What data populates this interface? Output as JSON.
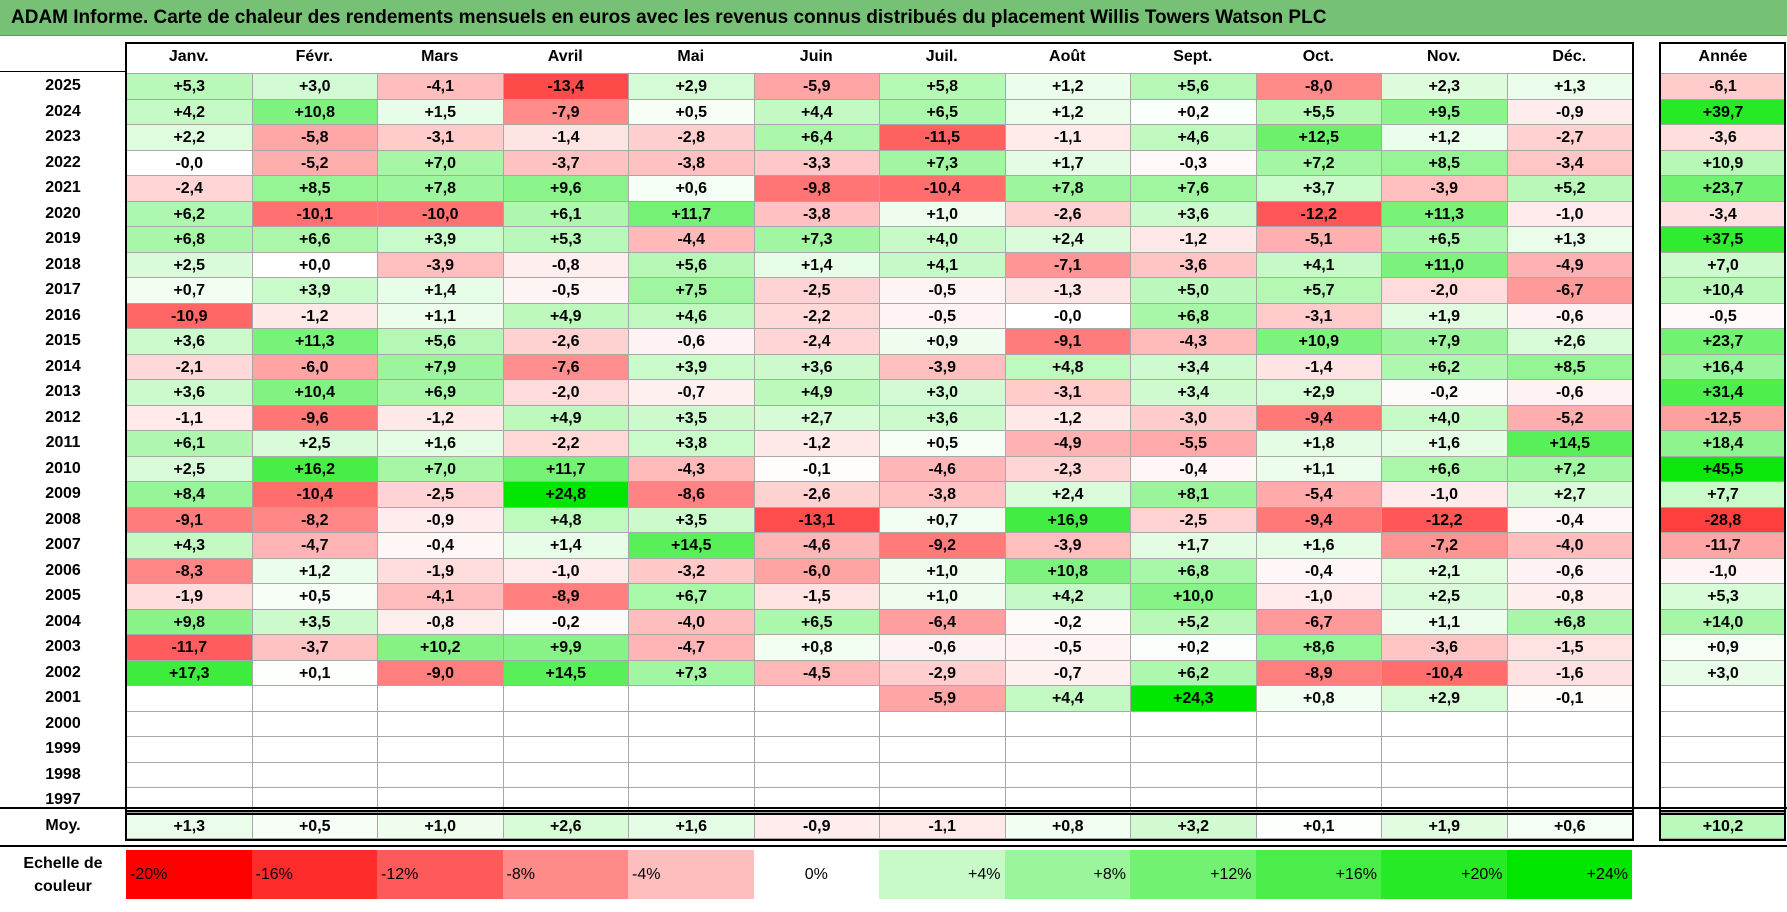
{
  "title": "ADAM Informe. Carte de chaleur des rendements mensuels en euros avec les revenus connus distribués du placement Willis Towers Watson PLC",
  "months": [
    "Janv.",
    "Févr.",
    "Mars",
    "Avril",
    "Mai",
    "Juin",
    "Juil.",
    "Août",
    "Sept.",
    "Oct.",
    "Nov.",
    "Déc."
  ],
  "year_header": "Année",
  "avg_label": "Moy.",
  "scale_label": "Echelle de couleur",
  "scale": [
    {
      "label": "-20%",
      "value": -20
    },
    {
      "label": "-16%",
      "value": -16
    },
    {
      "label": "-12%",
      "value": -12
    },
    {
      "label": "-8%",
      "value": -8
    },
    {
      "label": "-4%",
      "value": -4
    },
    {
      "label": "0%",
      "value": 0
    },
    {
      "label": "+4%",
      "value": 4
    },
    {
      "label": "+8%",
      "value": 8
    },
    {
      "label": "+12%",
      "value": 12
    },
    {
      "label": "+16%",
      "value": 16
    },
    {
      "label": "+20%",
      "value": 20
    },
    {
      "label": "+24%",
      "value": 24
    }
  ],
  "colors": {
    "title_bg": "#77c177",
    "neg_max": "#ff0000",
    "pos_max": "#00e600",
    "neutral": "#ffffff"
  },
  "chart_data": {
    "type": "heatmap",
    "title": "ADAM Informe. Carte de chaleur des rendements mensuels en euros avec les revenus connus distribués du placement Willis Towers Watson PLC",
    "x": [
      "Janv.",
      "Févr.",
      "Mars",
      "Avril",
      "Mai",
      "Juin",
      "Juil.",
      "Août",
      "Sept.",
      "Oct.",
      "Nov.",
      "Déc."
    ],
    "rows": [
      {
        "year": "2025",
        "values": [
          "+5,3",
          "+3,0",
          "-4,1",
          "-13,4",
          "+2,9",
          "-5,9",
          "+5,8",
          "+1,2",
          "+5,6",
          "-8,0",
          "+2,3",
          "+1,3"
        ],
        "annual": "-6,1"
      },
      {
        "year": "2024",
        "values": [
          "+4,2",
          "+10,8",
          "+1,5",
          "-7,9",
          "+0,5",
          "+4,4",
          "+6,5",
          "+1,2",
          "+0,2",
          "+5,5",
          "+9,5",
          "-0,9"
        ],
        "annual": "+39,7"
      },
      {
        "year": "2023",
        "values": [
          "+2,2",
          "-5,8",
          "-3,1",
          "-1,4",
          "-2,8",
          "+6,4",
          "-11,5",
          "-1,1",
          "+4,6",
          "+12,5",
          "+1,2",
          "-2,7"
        ],
        "annual": "-3,6"
      },
      {
        "year": "2022",
        "values": [
          "-0,0",
          "-5,2",
          "+7,0",
          "-3,7",
          "-3,8",
          "-3,3",
          "+7,3",
          "+1,7",
          "-0,3",
          "+7,2",
          "+8,5",
          "-3,4"
        ],
        "annual": "+10,9"
      },
      {
        "year": "2021",
        "values": [
          "-2,4",
          "+8,5",
          "+7,8",
          "+9,6",
          "+0,6",
          "-9,8",
          "-10,4",
          "+7,8",
          "+7,6",
          "+3,7",
          "-3,9",
          "+5,2"
        ],
        "annual": "+23,7"
      },
      {
        "year": "2020",
        "values": [
          "+6,2",
          "-10,1",
          "-10,0",
          "+6,1",
          "+11,7",
          "-3,8",
          "+1,0",
          "-2,6",
          "+3,6",
          "-12,2",
          "+11,3",
          "-1,0"
        ],
        "annual": "-3,4"
      },
      {
        "year": "2019",
        "values": [
          "+6,8",
          "+6,6",
          "+3,9",
          "+5,3",
          "-4,4",
          "+7,3",
          "+4,0",
          "+2,4",
          "-1,2",
          "-5,1",
          "+6,5",
          "+1,3"
        ],
        "annual": "+37,5"
      },
      {
        "year": "2018",
        "values": [
          "+2,5",
          "+0,0",
          "-3,9",
          "-0,8",
          "+5,6",
          "+1,4",
          "+4,1",
          "-7,1",
          "-3,6",
          "+4,1",
          "+11,0",
          "-4,9"
        ],
        "annual": "+7,0"
      },
      {
        "year": "2017",
        "values": [
          "+0,7",
          "+3,9",
          "+1,4",
          "-0,5",
          "+7,5",
          "-2,5",
          "-0,5",
          "-1,3",
          "+5,0",
          "+5,7",
          "-2,0",
          "-6,7"
        ],
        "annual": "+10,4"
      },
      {
        "year": "2016",
        "values": [
          "-10,9",
          "-1,2",
          "+1,1",
          "+4,9",
          "+4,6",
          "-2,2",
          "-0,5",
          "-0,0",
          "+6,8",
          "-3,1",
          "+1,9",
          "-0,6"
        ],
        "annual": "-0,5"
      },
      {
        "year": "2015",
        "values": [
          "+3,6",
          "+11,3",
          "+5,6",
          "-2,6",
          "-0,6",
          "-2,4",
          "+0,9",
          "-9,1",
          "-4,3",
          "+10,9",
          "+7,9",
          "+2,6"
        ],
        "annual": "+23,7"
      },
      {
        "year": "2014",
        "values": [
          "-2,1",
          "-6,0",
          "+7,9",
          "-7,6",
          "+3,9",
          "+3,6",
          "-3,9",
          "+4,8",
          "+3,4",
          "-1,4",
          "+6,2",
          "+8,5"
        ],
        "annual": "+16,4"
      },
      {
        "year": "2013",
        "values": [
          "+3,6",
          "+10,4",
          "+6,9",
          "-2,0",
          "-0,7",
          "+4,9",
          "+3,0",
          "-3,1",
          "+3,4",
          "+2,9",
          "-0,2",
          "-0,6"
        ],
        "annual": "+31,4"
      },
      {
        "year": "2012",
        "values": [
          "-1,1",
          "-9,6",
          "-1,2",
          "+4,9",
          "+3,5",
          "+2,7",
          "+3,6",
          "-1,2",
          "-3,0",
          "-9,4",
          "+4,0",
          "-5,2"
        ],
        "annual": "-12,5"
      },
      {
        "year": "2011",
        "values": [
          "+6,1",
          "+2,5",
          "+1,6",
          "-2,2",
          "+3,8",
          "-1,2",
          "+0,5",
          "-4,9",
          "-5,5",
          "+1,8",
          "+1,6",
          "+14,5"
        ],
        "annual": "+18,4"
      },
      {
        "year": "2010",
        "values": [
          "+2,5",
          "+16,2",
          "+7,0",
          "+11,7",
          "-4,3",
          "-0,1",
          "-4,6",
          "-2,3",
          "-0,4",
          "+1,1",
          "+6,6",
          "+7,2"
        ],
        "annual": "+45,5"
      },
      {
        "year": "2009",
        "values": [
          "+8,4",
          "-10,4",
          "-2,5",
          "+24,8",
          "-8,6",
          "-2,6",
          "-3,8",
          "+2,4",
          "+8,1",
          "-5,4",
          "-1,0",
          "+2,7"
        ],
        "annual": "+7,7"
      },
      {
        "year": "2008",
        "values": [
          "-9,1",
          "-8,2",
          "-0,9",
          "+4,8",
          "+3,5",
          "-13,1",
          "+0,7",
          "+16,9",
          "-2,5",
          "-9,4",
          "-12,2",
          "-0,4"
        ],
        "annual": "-28,8"
      },
      {
        "year": "2007",
        "values": [
          "+4,3",
          "-4,7",
          "-0,4",
          "+1,4",
          "+14,5",
          "-4,6",
          "-9,2",
          "-3,9",
          "+1,7",
          "+1,6",
          "-7,2",
          "-4,0"
        ],
        "annual": "-11,7"
      },
      {
        "year": "2006",
        "values": [
          "-8,3",
          "+1,2",
          "-1,9",
          "-1,0",
          "-3,2",
          "-6,0",
          "+1,0",
          "+10,8",
          "+6,8",
          "-0,4",
          "+2,1",
          "-0,6"
        ],
        "annual": "-1,0"
      },
      {
        "year": "2005",
        "values": [
          "-1,9",
          "+0,5",
          "-4,1",
          "-8,9",
          "+6,7",
          "-1,5",
          "+1,0",
          "+4,2",
          "+10,0",
          "-1,0",
          "+2,5",
          "-0,8"
        ],
        "annual": "+5,3"
      },
      {
        "year": "2004",
        "values": [
          "+9,8",
          "+3,5",
          "-0,8",
          "-0,2",
          "-4,0",
          "+6,5",
          "-6,4",
          "-0,2",
          "+5,2",
          "-6,7",
          "+1,1",
          "+6,8"
        ],
        "annual": "+14,0"
      },
      {
        "year": "2003",
        "values": [
          "-11,7",
          "-3,7",
          "+10,2",
          "+9,9",
          "-4,7",
          "+0,8",
          "-0,6",
          "-0,5",
          "+0,2",
          "+8,6",
          "-3,6",
          "-1,5"
        ],
        "annual": "+0,9"
      },
      {
        "year": "2002",
        "values": [
          "+17,3",
          "+0,1",
          "-9,0",
          "+14,5",
          "+7,3",
          "-4,5",
          "-2,9",
          "-0,7",
          "+6,2",
          "-8,9",
          "-10,4",
          "-1,6"
        ],
        "annual": "+3,0"
      },
      {
        "year": "2001",
        "values": [
          "",
          "",
          "",
          "",
          "",
          "",
          "-5,9",
          "+4,4",
          "+24,3",
          "+0,8",
          "+2,9",
          "-0,1"
        ],
        "annual": ""
      },
      {
        "year": "2000",
        "values": [
          "",
          "",
          "",
          "",
          "",
          "",
          "",
          "",
          "",
          "",
          "",
          ""
        ],
        "annual": ""
      },
      {
        "year": "1999",
        "values": [
          "",
          "",
          "",
          "",
          "",
          "",
          "",
          "",
          "",
          "",
          "",
          ""
        ],
        "annual": ""
      },
      {
        "year": "1998",
        "values": [
          "",
          "",
          "",
          "",
          "",
          "",
          "",
          "",
          "",
          "",
          "",
          ""
        ],
        "annual": ""
      },
      {
        "year": "1997",
        "values": [
          "",
          "",
          "",
          "",
          "",
          "",
          "",
          "",
          "",
          "",
          "",
          ""
        ],
        "annual": ""
      }
    ],
    "average": {
      "values": [
        "+1,3",
        "+0,5",
        "+1,0",
        "+2,6",
        "+1,6",
        "-0,9",
        "-1,1",
        "+0,8",
        "+3,2",
        "+0,1",
        "+1,9",
        "+0,6"
      ],
      "annual": "+10,2"
    }
  }
}
